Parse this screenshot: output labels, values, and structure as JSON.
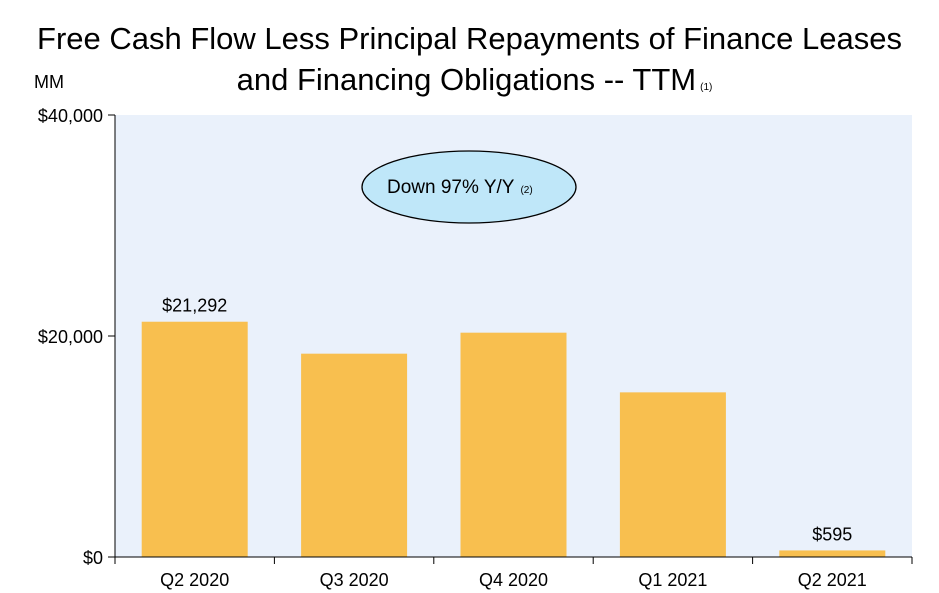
{
  "title": {
    "line1": "Free Cash Flow Less Principal Repayments of Finance Leases",
    "line2": "and Financing Obligations -- TTM",
    "footnote": "(1)"
  },
  "unit_label": "MM",
  "callout": {
    "text": "Down 97% Y/Y",
    "footnote": "(2)"
  },
  "colors": {
    "bar": "#F8BF4F",
    "plot_background": "#EAF1FB",
    "callout_fill": "#BFE7F9",
    "axis": "#000000"
  },
  "chart_data": {
    "type": "bar",
    "categories": [
      "Q2 2020",
      "Q3 2020",
      "Q4 2020",
      "Q1 2021",
      "Q2 2021"
    ],
    "values": [
      21292,
      18400,
      20300,
      14900,
      595
    ],
    "data_labels": [
      "$21,292",
      "",
      "",
      "",
      "$595"
    ],
    "ylim": [
      0,
      40000
    ],
    "yticks": [
      0,
      20000,
      40000
    ],
    "ytick_labels": [
      "$0",
      "$20,000",
      "$40,000"
    ],
    "xlabel": "",
    "ylabel": "MM",
    "grid": false,
    "legend": "none"
  }
}
